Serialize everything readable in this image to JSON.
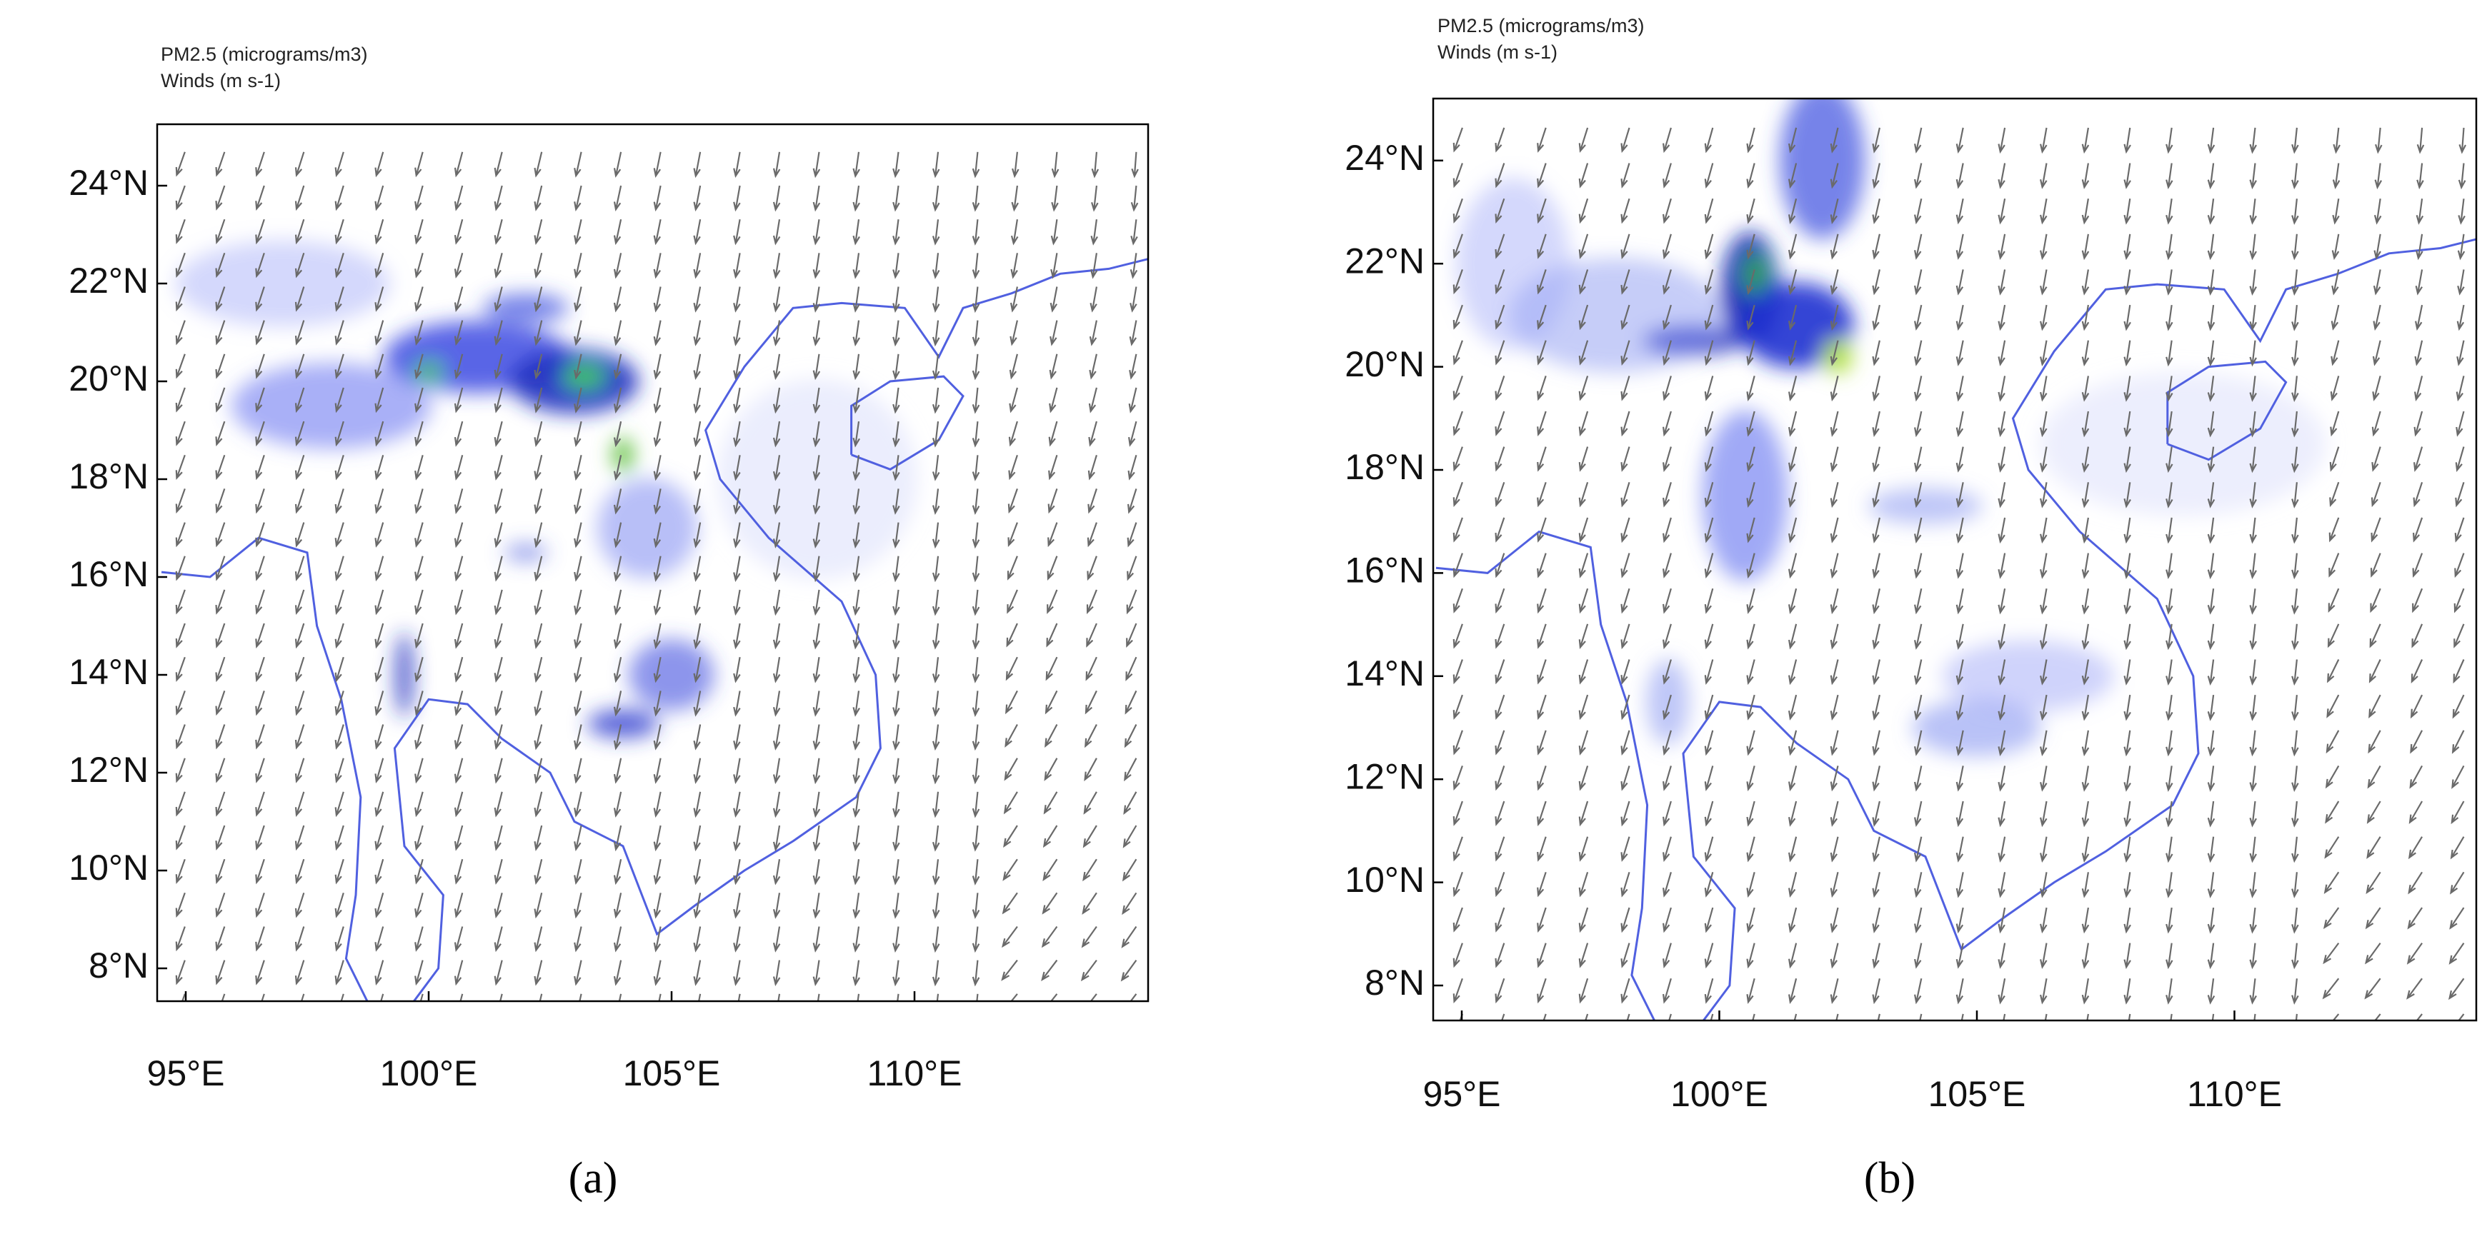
{
  "panels": [
    {
      "header": [
        "PM2.5   (micrograms/m3)",
        "Winds   (m s-1)"
      ],
      "lat_ticks": [
        "8°N",
        "10°N",
        "12°N",
        "14°N",
        "16°N",
        "18°N",
        "20°N",
        "22°N",
        "24°N"
      ],
      "lon_ticks": [
        "95°E",
        "100°E",
        "105°E",
        "110°E"
      ],
      "label": "(a)"
    },
    {
      "header": [
        "PM2.5   (micrograms/m3)",
        "Winds   (m s-1)"
      ],
      "lat_ticks": [
        "8°N",
        "10°N",
        "12°N",
        "14°N",
        "16°N",
        "18°N",
        "20°N",
        "22°N",
        "24°N"
      ],
      "lon_ticks": [
        "95°E",
        "100°E",
        "105°E",
        "110°E"
      ],
      "label": "(b)"
    }
  ]
}
